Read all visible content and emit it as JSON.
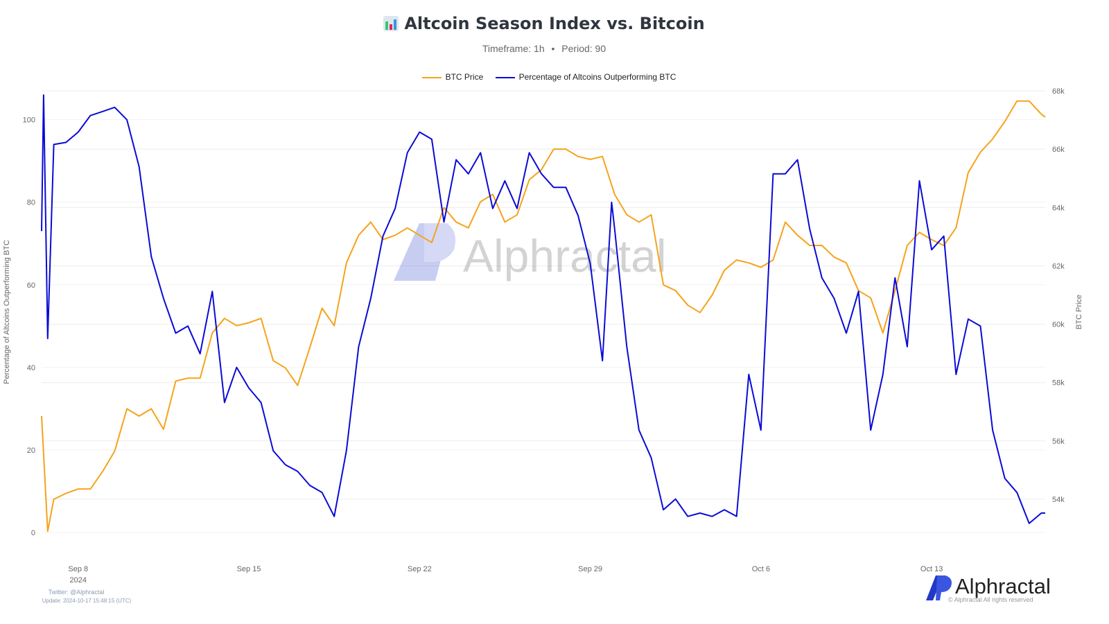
{
  "header": {
    "title": "Altcoin Season Index vs. Bitcoin",
    "subtitle_timeframe": "Timeframe: 1h",
    "subtitle_sep": "•",
    "subtitle_period": "Period: 90",
    "icon": "bar-chart-icon"
  },
  "footer": {
    "twitter": "Twitter: @Alphractal",
    "update": "Update: 2024-10-17 15:48:15 (UTC)",
    "brand": "Alphractal",
    "copyright": "© Alphractal All rights reserved"
  },
  "watermark": "Alphractal",
  "colors": {
    "btc": "#f5a31a",
    "alt": "#0a0ad6",
    "grid": "#e6e6e6",
    "axis_text": "#666666"
  },
  "chart_data": {
    "type": "line",
    "title": "Altcoin Season Index vs. Bitcoin",
    "ylabel": "Percentage of Altcoins Outperforming BTC",
    "y2label": "BTC Price",
    "legend_position": "top-center",
    "grid": true,
    "ylim": [
      0,
      107
    ],
    "y2lim": [
      52.86,
      68.0
    ],
    "yticks": [
      "0",
      "20",
      "40",
      "60",
      "80",
      "100"
    ],
    "y2ticks": [
      "54k",
      "56k",
      "58k",
      "60k",
      "62k",
      "64k",
      "66k",
      "68k"
    ],
    "xticks": [
      {
        "date": "2024-09-08 00:00",
        "label": "Sep 8",
        "sub": "2024"
      },
      {
        "date": "2024-09-15 00:00",
        "label": "Sep 15"
      },
      {
        "date": "2024-09-22 00:00",
        "label": "Sep 22"
      },
      {
        "date": "2024-09-29 00:00",
        "label": "Sep 29"
      },
      {
        "date": "2024-10-06 00:00",
        "label": "Oct 6"
      },
      {
        "date": "2024-10-13 00:00",
        "label": "Oct 13"
      }
    ],
    "xlim": [
      "2024-09-06 12:00",
      "2024-10-17 15:48"
    ],
    "series": [
      {
        "name": "BTC Price",
        "axis": "right",
        "unit": "k USD",
        "color": "#f5a31a",
        "points": [
          [
            "2024-09-06 12:00",
            56.85
          ],
          [
            "2024-09-06 18:00",
            52.9
          ],
          [
            "2024-09-07 00:00",
            54.0
          ],
          [
            "2024-09-07 12:00",
            54.2
          ],
          [
            "2024-09-08 00:00",
            54.35
          ],
          [
            "2024-09-08 12:00",
            54.35
          ],
          [
            "2024-09-09 00:00",
            54.95
          ],
          [
            "2024-09-09 12:00",
            55.65
          ],
          [
            "2024-09-10 00:00",
            57.1
          ],
          [
            "2024-09-10 12:00",
            56.85
          ],
          [
            "2024-09-11 00:00",
            57.1
          ],
          [
            "2024-09-11 12:00",
            56.4
          ],
          [
            "2024-09-12 00:00",
            58.05
          ],
          [
            "2024-09-12 12:00",
            58.15
          ],
          [
            "2024-09-13 00:00",
            58.15
          ],
          [
            "2024-09-13 12:00",
            59.7
          ],
          [
            "2024-09-14 00:00",
            60.2
          ],
          [
            "2024-09-14 12:00",
            59.95
          ],
          [
            "2024-09-15 00:00",
            60.05
          ],
          [
            "2024-09-15 12:00",
            60.2
          ],
          [
            "2024-09-16 00:00",
            58.75
          ],
          [
            "2024-09-16 12:00",
            58.5
          ],
          [
            "2024-09-17 00:00",
            57.9
          ],
          [
            "2024-09-17 12:00",
            59.2
          ],
          [
            "2024-09-18 00:00",
            60.55
          ],
          [
            "2024-09-18 12:00",
            59.95
          ],
          [
            "2024-09-19 00:00",
            62.1
          ],
          [
            "2024-09-19 12:00",
            63.05
          ],
          [
            "2024-09-20 00:00",
            63.5
          ],
          [
            "2024-09-20 12:00",
            62.9
          ],
          [
            "2024-09-21 00:00",
            63.05
          ],
          [
            "2024-09-21 12:00",
            63.3
          ],
          [
            "2024-09-22 00:00",
            63.05
          ],
          [
            "2024-09-22 12:00",
            62.8
          ],
          [
            "2024-09-23 00:00",
            64.0
          ],
          [
            "2024-09-23 12:00",
            63.5
          ],
          [
            "2024-09-24 00:00",
            63.3
          ],
          [
            "2024-09-24 12:00",
            64.2
          ],
          [
            "2024-09-25 00:00",
            64.45
          ],
          [
            "2024-09-25 12:00",
            63.5
          ],
          [
            "2024-09-26 00:00",
            63.75
          ],
          [
            "2024-09-26 12:00",
            64.95
          ],
          [
            "2024-09-27 00:00",
            65.3
          ],
          [
            "2024-09-27 12:00",
            66.0
          ],
          [
            "2024-09-28 00:00",
            66.0
          ],
          [
            "2024-09-28 12:00",
            65.75
          ],
          [
            "2024-09-29 00:00",
            65.65
          ],
          [
            "2024-09-29 12:00",
            65.75
          ],
          [
            "2024-09-30 00:00",
            64.45
          ],
          [
            "2024-09-30 12:00",
            63.75
          ],
          [
            "2024-10-01 00:00",
            63.5
          ],
          [
            "2024-10-01 12:00",
            63.75
          ],
          [
            "2024-10-02 00:00",
            61.35
          ],
          [
            "2024-10-02 12:00",
            61.15
          ],
          [
            "2024-10-03 00:00",
            60.65
          ],
          [
            "2024-10-03 12:00",
            60.4
          ],
          [
            "2024-10-04 00:00",
            61.0
          ],
          [
            "2024-10-04 12:00",
            61.85
          ],
          [
            "2024-10-05 00:00",
            62.2
          ],
          [
            "2024-10-05 12:00",
            62.1
          ],
          [
            "2024-10-06 00:00",
            61.95
          ],
          [
            "2024-10-06 12:00",
            62.2
          ],
          [
            "2024-10-07 00:00",
            63.5
          ],
          [
            "2024-10-07 12:00",
            63.05
          ],
          [
            "2024-10-08 00:00",
            62.7
          ],
          [
            "2024-10-08 12:00",
            62.7
          ],
          [
            "2024-10-09 00:00",
            62.3
          ],
          [
            "2024-10-09 12:00",
            62.1
          ],
          [
            "2024-10-10 00:00",
            61.15
          ],
          [
            "2024-10-10 12:00",
            60.9
          ],
          [
            "2024-10-11 00:00",
            59.7
          ],
          [
            "2024-10-11 12:00",
            61.15
          ],
          [
            "2024-10-12 00:00",
            62.7
          ],
          [
            "2024-10-12 12:00",
            63.15
          ],
          [
            "2024-10-13 00:00",
            62.9
          ],
          [
            "2024-10-13 12:00",
            62.7
          ],
          [
            "2024-10-14 00:00",
            63.3
          ],
          [
            "2024-10-14 12:00",
            65.2
          ],
          [
            "2024-10-15 00:00",
            65.9
          ],
          [
            "2024-10-15 12:00",
            66.35
          ],
          [
            "2024-10-16 00:00",
            66.95
          ],
          [
            "2024-10-16 12:00",
            67.65
          ],
          [
            "2024-10-17 00:00",
            67.65
          ],
          [
            "2024-10-17 12:00",
            67.2
          ],
          [
            "2024-10-17 15:48",
            67.1
          ]
        ]
      },
      {
        "name": "Percentage of Altcoins Outperforming BTC",
        "axis": "left",
        "color": "#0a0ad6",
        "points": [
          [
            "2024-09-06 12:00",
            73
          ],
          [
            "2024-09-06 14:00",
            106
          ],
          [
            "2024-09-06 18:00",
            47
          ],
          [
            "2024-09-07 00:00",
            94
          ],
          [
            "2024-09-07 12:00",
            94.5
          ],
          [
            "2024-09-08 00:00",
            97
          ],
          [
            "2024-09-08 12:00",
            101
          ],
          [
            "2024-09-09 00:00",
            102
          ],
          [
            "2024-09-09 12:00",
            103
          ],
          [
            "2024-09-10 00:00",
            100
          ],
          [
            "2024-09-10 12:00",
            88.6
          ],
          [
            "2024-09-11 00:00",
            66.8
          ],
          [
            "2024-09-11 12:00",
            56.7
          ],
          [
            "2024-09-12 00:00",
            48.3
          ],
          [
            "2024-09-12 12:00",
            50
          ],
          [
            "2024-09-13 00:00",
            43.3
          ],
          [
            "2024-09-13 12:00",
            58.4
          ],
          [
            "2024-09-14 00:00",
            31.5
          ],
          [
            "2024-09-14 12:00",
            40
          ],
          [
            "2024-09-15 00:00",
            35
          ],
          [
            "2024-09-15 12:00",
            31.5
          ],
          [
            "2024-09-16 00:00",
            19.8
          ],
          [
            "2024-09-16 12:00",
            16.4
          ],
          [
            "2024-09-17 00:00",
            14.8
          ],
          [
            "2024-09-17 12:00",
            11.4
          ],
          [
            "2024-09-18 00:00",
            9.7
          ],
          [
            "2024-09-18 12:00",
            3.9
          ],
          [
            "2024-09-19 00:00",
            19.8
          ],
          [
            "2024-09-19 12:00",
            45
          ],
          [
            "2024-09-20 00:00",
            56.7
          ],
          [
            "2024-09-20 12:00",
            71.8
          ],
          [
            "2024-09-21 00:00",
            78.5
          ],
          [
            "2024-09-21 12:00",
            92
          ],
          [
            "2024-09-22 00:00",
            97
          ],
          [
            "2024-09-22 12:00",
            95.3
          ],
          [
            "2024-09-23 00:00",
            75.2
          ],
          [
            "2024-09-23 12:00",
            90.3
          ],
          [
            "2024-09-24 00:00",
            86.9
          ],
          [
            "2024-09-24 12:00",
            92
          ],
          [
            "2024-09-25 00:00",
            78.5
          ],
          [
            "2024-09-25 12:00",
            85.2
          ],
          [
            "2024-09-26 00:00",
            78.5
          ],
          [
            "2024-09-26 12:00",
            92
          ],
          [
            "2024-09-27 00:00",
            86.9
          ],
          [
            "2024-09-27 12:00",
            83.6
          ],
          [
            "2024-09-28 00:00",
            83.6
          ],
          [
            "2024-09-28 12:00",
            76.8
          ],
          [
            "2024-09-29 00:00",
            65.1
          ],
          [
            "2024-09-29 12:00",
            41.6
          ],
          [
            "2024-09-29 21:00",
            80
          ],
          [
            "2024-09-30 00:00",
            73.5
          ],
          [
            "2024-09-30 12:00",
            45
          ],
          [
            "2024-10-01 00:00",
            24.8
          ],
          [
            "2024-10-01 12:00",
            18.1
          ],
          [
            "2024-10-02 00:00",
            5.5
          ],
          [
            "2024-10-02 12:00",
            8.1
          ],
          [
            "2024-10-03 00:00",
            3.9
          ],
          [
            "2024-10-03 12:00",
            4.7
          ],
          [
            "2024-10-04 00:00",
            3.9
          ],
          [
            "2024-10-04 12:00",
            5.5
          ],
          [
            "2024-10-05 00:00",
            3.9
          ],
          [
            "2024-10-05 12:00",
            38.3
          ],
          [
            "2024-10-06 00:00",
            24.8
          ],
          [
            "2024-10-06 12:00",
            86.9
          ],
          [
            "2024-10-07 00:00",
            86.9
          ],
          [
            "2024-10-07 12:00",
            90.3
          ],
          [
            "2024-10-08 00:00",
            73.5
          ],
          [
            "2024-10-08 12:00",
            61.7
          ],
          [
            "2024-10-09 00:00",
            56.7
          ],
          [
            "2024-10-09 12:00",
            48.3
          ],
          [
            "2024-10-10 00:00",
            58.4
          ],
          [
            "2024-10-10 12:00",
            24.8
          ],
          [
            "2024-10-11 00:00",
            38.3
          ],
          [
            "2024-10-11 12:00",
            61.7
          ],
          [
            "2024-10-12 00:00",
            45
          ],
          [
            "2024-10-12 12:00",
            85.2
          ],
          [
            "2024-10-13 00:00",
            68.5
          ],
          [
            "2024-10-13 12:00",
            71.8
          ],
          [
            "2024-10-14 00:00",
            38.3
          ],
          [
            "2024-10-14 12:00",
            51.7
          ],
          [
            "2024-10-15 00:00",
            50
          ],
          [
            "2024-10-15 12:00",
            24.8
          ],
          [
            "2024-10-16 00:00",
            13.1
          ],
          [
            "2024-10-16 12:00",
            9.7
          ],
          [
            "2024-10-17 00:00",
            2.2
          ],
          [
            "2024-10-17 12:00",
            4.7
          ],
          [
            "2024-10-17 15:48",
            4.7
          ]
        ]
      }
    ]
  }
}
